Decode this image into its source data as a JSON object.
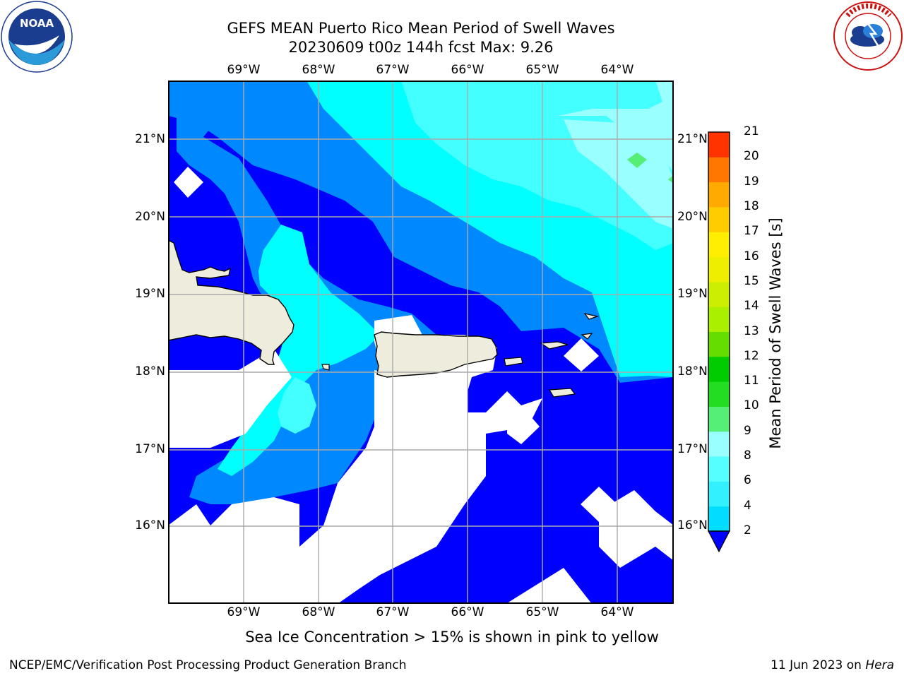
{
  "title_line1": "GEFS MEAN Puerto Rico Mean Period of Swell Waves",
  "title_line2": "20230609 t00z 144h fcst   Max: 9.26",
  "logos": {
    "left": "noaa-logo",
    "right": "nws-logo",
    "left_text": "NOAA",
    "right_text": "NATIONAL WEATHER SERVICE"
  },
  "lon_labels": [
    "69°W",
    "68°W",
    "67°W",
    "66°W",
    "65°W",
    "64°W"
  ],
  "lat_labels": [
    "21°N",
    "20°N",
    "19°N",
    "18°N",
    "17°N",
    "16°N"
  ],
  "colorbar": {
    "label": "Mean Period of Swell Waves [s]",
    "ticks": [
      "2",
      "4",
      "6",
      "8",
      "9",
      "10",
      "11",
      "12",
      "13",
      "14",
      "15",
      "16",
      "17",
      "18",
      "19",
      "20",
      "21"
    ],
    "colors": [
      "#0066ff",
      "#00ddff",
      "#33f0ff",
      "#55ffff",
      "#99ffff",
      "#55ee77",
      "#22dd22",
      "#00cc00",
      "#66dd00",
      "#aaee00",
      "#ccee00",
      "#eeee00",
      "#ffee00",
      "#ffcc00",
      "#ffaa00",
      "#ff7700",
      "#ff3300",
      "#ff0000"
    ],
    "extend_min_color": "#0000ff"
  },
  "colors": {
    "land": "#eeecdc",
    "level_2_4": "#0000ff",
    "level_4_6": "#0088ff",
    "level_6_7": "#00ffff",
    "level_7_8": "#44ffff",
    "level_8_9": "#99ffff"
  },
  "bottom_note": "Sea Ice Concentration > 15% is shown in pink to yellow",
  "footer_left": "NCEP/EMC/Verification Post Processing Product Generation Branch",
  "footer_date": "11 Jun 2023 on ",
  "footer_host": "Hera"
}
